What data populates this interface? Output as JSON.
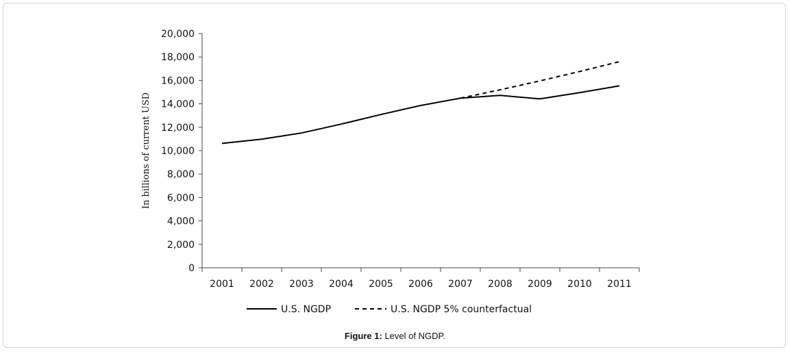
{
  "caption": {
    "label": "Figure 1:",
    "text": "Level of NGDP."
  },
  "chart_data": {
    "type": "line",
    "ylabel": "In billions of current USD",
    "xlabel": "",
    "ylim": [
      0,
      20000
    ],
    "yticks": [
      0,
      2000,
      4000,
      6000,
      8000,
      10000,
      12000,
      14000,
      16000,
      18000,
      20000
    ],
    "ytick_labels": [
      "0",
      "2,000",
      "4,000",
      "6,000",
      "8,000",
      "10,000",
      "12,000",
      "14,000",
      "16,000",
      "18,000",
      "20,000"
    ],
    "categories": [
      "2001",
      "2002",
      "2003",
      "2004",
      "2005",
      "2006",
      "2007",
      "2008",
      "2009",
      "2010",
      "2011"
    ],
    "grid": false,
    "legend_position": "bottom",
    "series": [
      {
        "name": "U.S. NGDP",
        "style": "solid",
        "color": "#000000",
        "x": [
          "2001",
          "2002",
          "2003",
          "2004",
          "2005",
          "2006",
          "2007",
          "2008",
          "2009",
          "2010",
          "2011"
        ],
        "values": [
          10620,
          10980,
          11510,
          12270,
          13090,
          13860,
          14480,
          14720,
          14420,
          14960,
          15530
        ]
      },
      {
        "name": "U.S. NGDP 5% counterfactual",
        "style": "dashed",
        "color": "#000000",
        "x": [
          "2007",
          "2008",
          "2009",
          "2010",
          "2011"
        ],
        "values": [
          14480,
          15200,
          15960,
          16760,
          17600
        ]
      }
    ]
  }
}
